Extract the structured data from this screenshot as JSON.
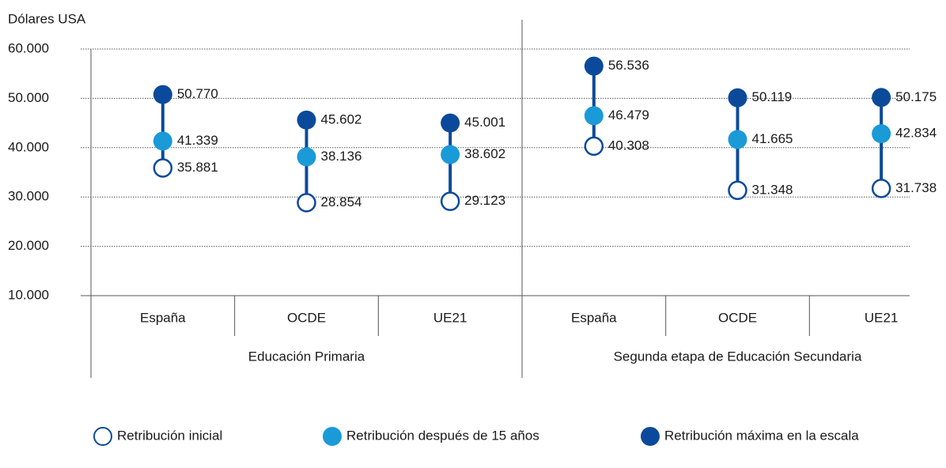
{
  "chart_data": {
    "type": "dot-range",
    "y_label": "Dólares USA",
    "groups": [
      {
        "name": "Educación Primaria",
        "categories": [
          "España",
          "OCDE",
          "UE21"
        ]
      },
      {
        "name": "Segunda etapa de Educación Secundaria",
        "categories": [
          "España",
          "OCDE",
          "UE21"
        ]
      }
    ],
    "series": [
      {
        "name": "Retribución inicial",
        "color": "#0b4a9b",
        "fill": "none",
        "values": [
          35881,
          28854,
          29123,
          40308,
          31348,
          31738
        ],
        "value_labels": [
          "35.881",
          "28.854",
          "29.123",
          "40.308",
          "31.348",
          "31.738"
        ]
      },
      {
        "name": "Retribución después de 15 años",
        "color": "#1a9ad7",
        "fill": "solid",
        "values": [
          41339,
          38136,
          38602,
          46479,
          41665,
          42834
        ],
        "value_labels": [
          "41.339",
          "38.136",
          "38.602",
          "46.479",
          "41.665",
          "42.834"
        ]
      },
      {
        "name": "Retribución máxima en la escala",
        "color": "#0b4a9b",
        "fill": "solid",
        "values": [
          50770,
          45602,
          45001,
          56536,
          50119,
          50175
        ],
        "value_labels": [
          "50.770",
          "45.602",
          "45.001",
          "56.536",
          "50.119",
          "50.175"
        ]
      }
    ],
    "ylim": [
      10000,
      60000
    ],
    "yticks": [
      {
        "value": 10000,
        "label": "10.000"
      },
      {
        "value": 20000,
        "label": "20.000"
      },
      {
        "value": 30000,
        "label": "30.000"
      },
      {
        "value": 40000,
        "label": "40.000"
      },
      {
        "value": 50000,
        "label": "50.000"
      },
      {
        "value": 60000,
        "label": "60.000"
      }
    ],
    "grid": true
  }
}
